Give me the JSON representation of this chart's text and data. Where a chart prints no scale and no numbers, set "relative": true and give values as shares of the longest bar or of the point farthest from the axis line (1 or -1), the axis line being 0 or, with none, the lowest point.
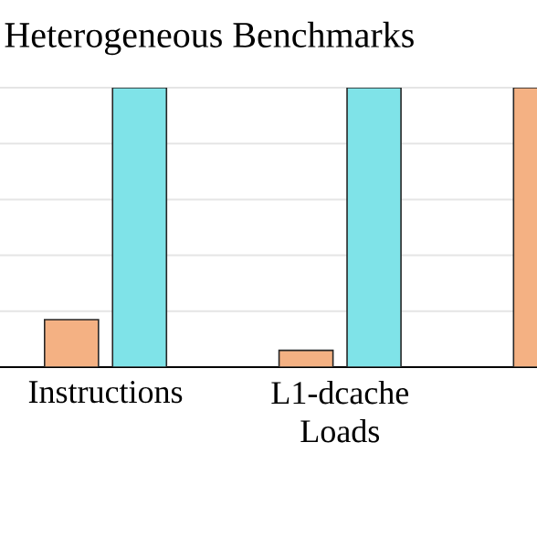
{
  "chart_data": {
    "type": "bar",
    "title": "Heterogeneous Benchmarks",
    "categories": [
      "Instructions",
      "L1-dcache Loads",
      null
    ],
    "relative": true,
    "grid": "y",
    "series": [
      {
        "color": "#f4b183",
        "values": [
          0.17,
          0.06,
          1
        ]
      },
      {
        "color": "#7fe3e8",
        "values": [
          1,
          1,
          null
        ]
      }
    ]
  }
}
